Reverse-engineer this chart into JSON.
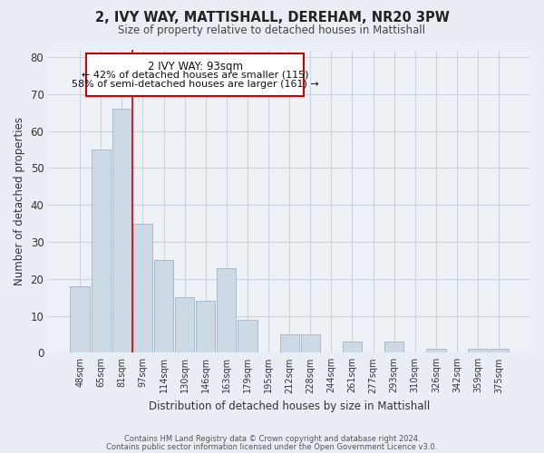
{
  "title": "2, IVY WAY, MATTISHALL, DEREHAM, NR20 3PW",
  "subtitle": "Size of property relative to detached houses in Mattishall",
  "xlabel": "Distribution of detached houses by size in Mattishall",
  "ylabel": "Number of detached properties",
  "bar_labels": [
    "48sqm",
    "65sqm",
    "81sqm",
    "97sqm",
    "114sqm",
    "130sqm",
    "146sqm",
    "163sqm",
    "179sqm",
    "195sqm",
    "212sqm",
    "228sqm",
    "244sqm",
    "261sqm",
    "277sqm",
    "293sqm",
    "310sqm",
    "326sqm",
    "342sqm",
    "359sqm",
    "375sqm"
  ],
  "bar_values": [
    18,
    55,
    66,
    35,
    25,
    15,
    14,
    23,
    9,
    0,
    5,
    5,
    0,
    3,
    0,
    3,
    0,
    1,
    0,
    1,
    1
  ],
  "bar_color": "#cdd9e5",
  "bar_edge_color": "#9eb4c8",
  "vline_color": "#cc0000",
  "vline_x_idx": 2.5,
  "ylim": [
    0,
    82
  ],
  "yticks": [
    0,
    10,
    20,
    30,
    40,
    50,
    60,
    70,
    80
  ],
  "annotation_title": "2 IVY WAY: 93sqm",
  "annotation_line1": "← 42% of detached houses are smaller (115)",
  "annotation_line2": "58% of semi-detached houses are larger (161) →",
  "annotation_box_facecolor": "#ffffff",
  "annotation_box_edgecolor": "#cc0000",
  "footer_line1": "Contains HM Land Registry data © Crown copyright and database right 2024.",
  "footer_line2": "Contains public sector information licensed under the Open Government Licence v3.0.",
  "bg_color": "#e8eef4",
  "plot_bg_color": "#eef2f7",
  "grid_color": "#c8d4e0"
}
